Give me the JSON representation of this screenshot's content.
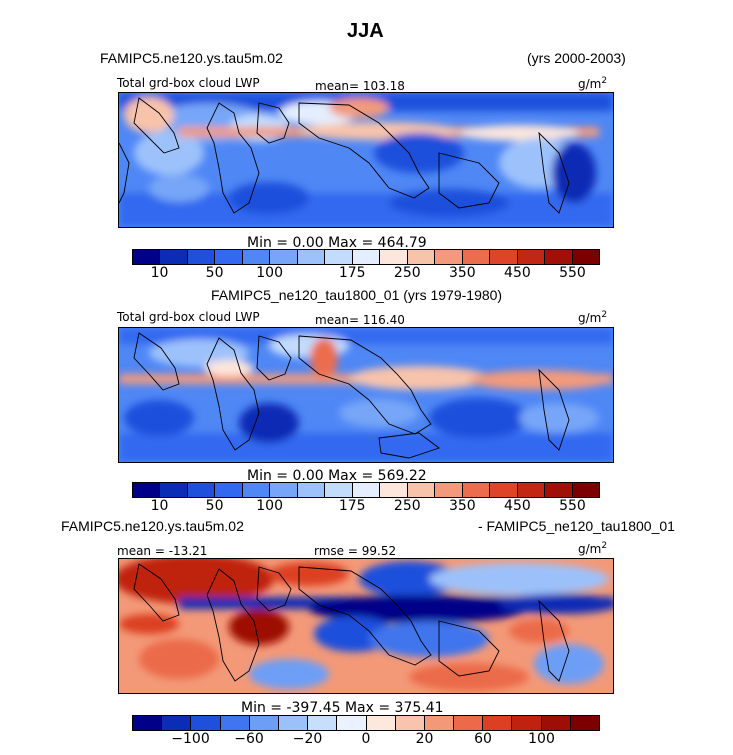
{
  "figure": {
    "title": "JJA",
    "units_sup": "2"
  },
  "chart_data": [
    {
      "type": "heatmap",
      "case_name": "FAMIPC5.ne120.ys.tau5m.02",
      "years": "(yrs 2000-2003)",
      "field_label": "Total grd-box cloud LWP",
      "mean_text": "mean= 103.18",
      "units": "g/m",
      "min_max_text": "Min =    0.00 Max = 464.79",
      "min": 0.0,
      "max": 464.79,
      "colorbar_levels": [
        10,
        25,
        50,
        75,
        100,
        125,
        150,
        175,
        200,
        250,
        300,
        350,
        400,
        450,
        500,
        550
      ],
      "colorbar_tick_labels": [
        "10",
        "50",
        "100",
        "175",
        "250",
        "350",
        "450",
        "550"
      ]
    },
    {
      "type": "heatmap",
      "case_name": "FAMIPC5_ne120_tau1800_01 (yrs 1979-1980)",
      "field_label": "Total grd-box cloud LWP",
      "mean_text": "mean= 116.40",
      "units": "g/m",
      "min_max_text": "Min =    0.00 Max = 569.22",
      "min": 0.0,
      "max": 569.22,
      "colorbar_levels": [
        10,
        25,
        50,
        75,
        100,
        125,
        150,
        175,
        200,
        250,
        300,
        350,
        400,
        450,
        500,
        550
      ],
      "colorbar_tick_labels": [
        "10",
        "50",
        "100",
        "175",
        "250",
        "350",
        "450",
        "550"
      ]
    },
    {
      "type": "heatmap",
      "case_left": "FAMIPC5.ne120.ys.tau5m.02",
      "case_right": "- FAMIPC5_ne120_tau1800_01",
      "mean_text": "mean = -13.21",
      "rmse_text": "rmse =  99.52",
      "units": "g/m",
      "min_max_text": "Min = -397.45 Max = 375.41",
      "min": -397.45,
      "max": 375.41,
      "colorbar_levels": [
        -120,
        -100,
        -80,
        -60,
        -40,
        -20,
        -10,
        0,
        10,
        20,
        40,
        60,
        80,
        100,
        120
      ],
      "colorbar_tick_labels": [
        "-100",
        "-60",
        "-20",
        "0",
        "20",
        "60",
        "100"
      ]
    }
  ],
  "colors": {
    "seq": [
      "#000088",
      "#0b2cb5",
      "#1e50dc",
      "#3269f0",
      "#4f87f5",
      "#77a6f8",
      "#9dc2fb",
      "#c3dbfd",
      "#e4eefe",
      "#fde6dc",
      "#f8c3ab",
      "#f39a7c",
      "#ec6d4e",
      "#de4427",
      "#c22714",
      "#a01008",
      "#7d0000"
    ],
    "div": [
      "#000088",
      "#0b2cb5",
      "#1e50dc",
      "#3f75ee",
      "#6d9ef6",
      "#9cc1fa",
      "#c8defd",
      "#eaf2ff",
      "#fde8dd",
      "#f8c4ae",
      "#f39978",
      "#eb6a49",
      "#dc3f21",
      "#bf2310",
      "#9d0e06",
      "#7d0000"
    ]
  }
}
